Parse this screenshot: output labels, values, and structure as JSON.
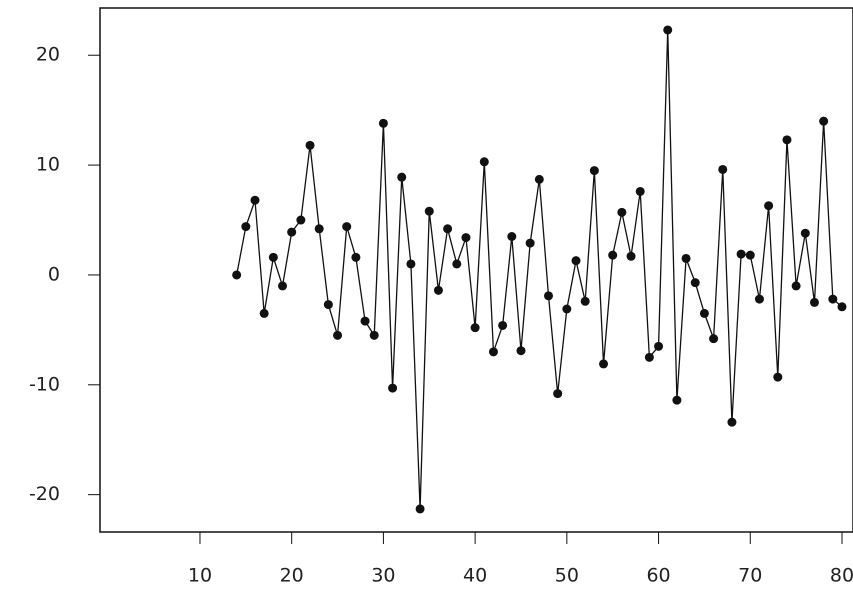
{
  "chart_data": {
    "type": "line",
    "x": [
      14,
      15,
      16,
      17,
      18,
      19,
      20,
      21,
      22,
      23,
      24,
      25,
      26,
      27,
      28,
      29,
      30,
      31,
      32,
      33,
      34,
      35,
      36,
      37,
      38,
      39,
      40,
      41,
      42,
      43,
      44,
      45,
      46,
      47,
      48,
      49,
      50,
      51,
      52,
      53,
      54,
      55,
      56,
      57,
      58,
      59,
      60,
      61,
      62,
      63,
      64,
      65,
      66,
      67,
      68,
      69,
      70,
      71,
      72,
      73,
      74,
      75,
      76,
      77,
      78,
      79,
      80
    ],
    "series": [
      {
        "color": "#111111",
        "values": [
          0,
          4.4,
          6.8,
          -3.5,
          1.6,
          -1,
          3.9,
          5,
          11.8,
          4.2,
          -2.7,
          -5.5,
          4.4,
          1.6,
          -4.2,
          -5.5,
          13.8,
          -10.3,
          8.9,
          1,
          -21.3,
          5.8,
          -1.4,
          4.2,
          1,
          3.4,
          -4.8,
          10.3,
          -7,
          -4.6,
          3.5,
          -6.9,
          2.9,
          8.7,
          -1.9,
          -10.8,
          -3.1,
          1.3,
          -2.4,
          9.5,
          -8.1,
          1.8,
          5.7,
          1.7,
          7.6,
          -7.5,
          -6.5,
          22.3,
          -11.4,
          1.5,
          -0.7,
          -3.5,
          -5.8,
          9.6,
          -13.4,
          1.9,
          1.8,
          -2.2,
          6.3,
          -9.3,
          12.3,
          -1,
          3.8,
          -2.5,
          14,
          -2.2,
          -2.9
        ]
      }
    ],
    "xlim": [
      -0.9,
      81.2
    ],
    "xticks": [
      10,
      20,
      30,
      40,
      50,
      60,
      70,
      80
    ],
    "ylim": [
      -23.4,
      24.3
    ],
    "yticks": [
      -20,
      -10,
      0,
      10,
      20
    ]
  }
}
